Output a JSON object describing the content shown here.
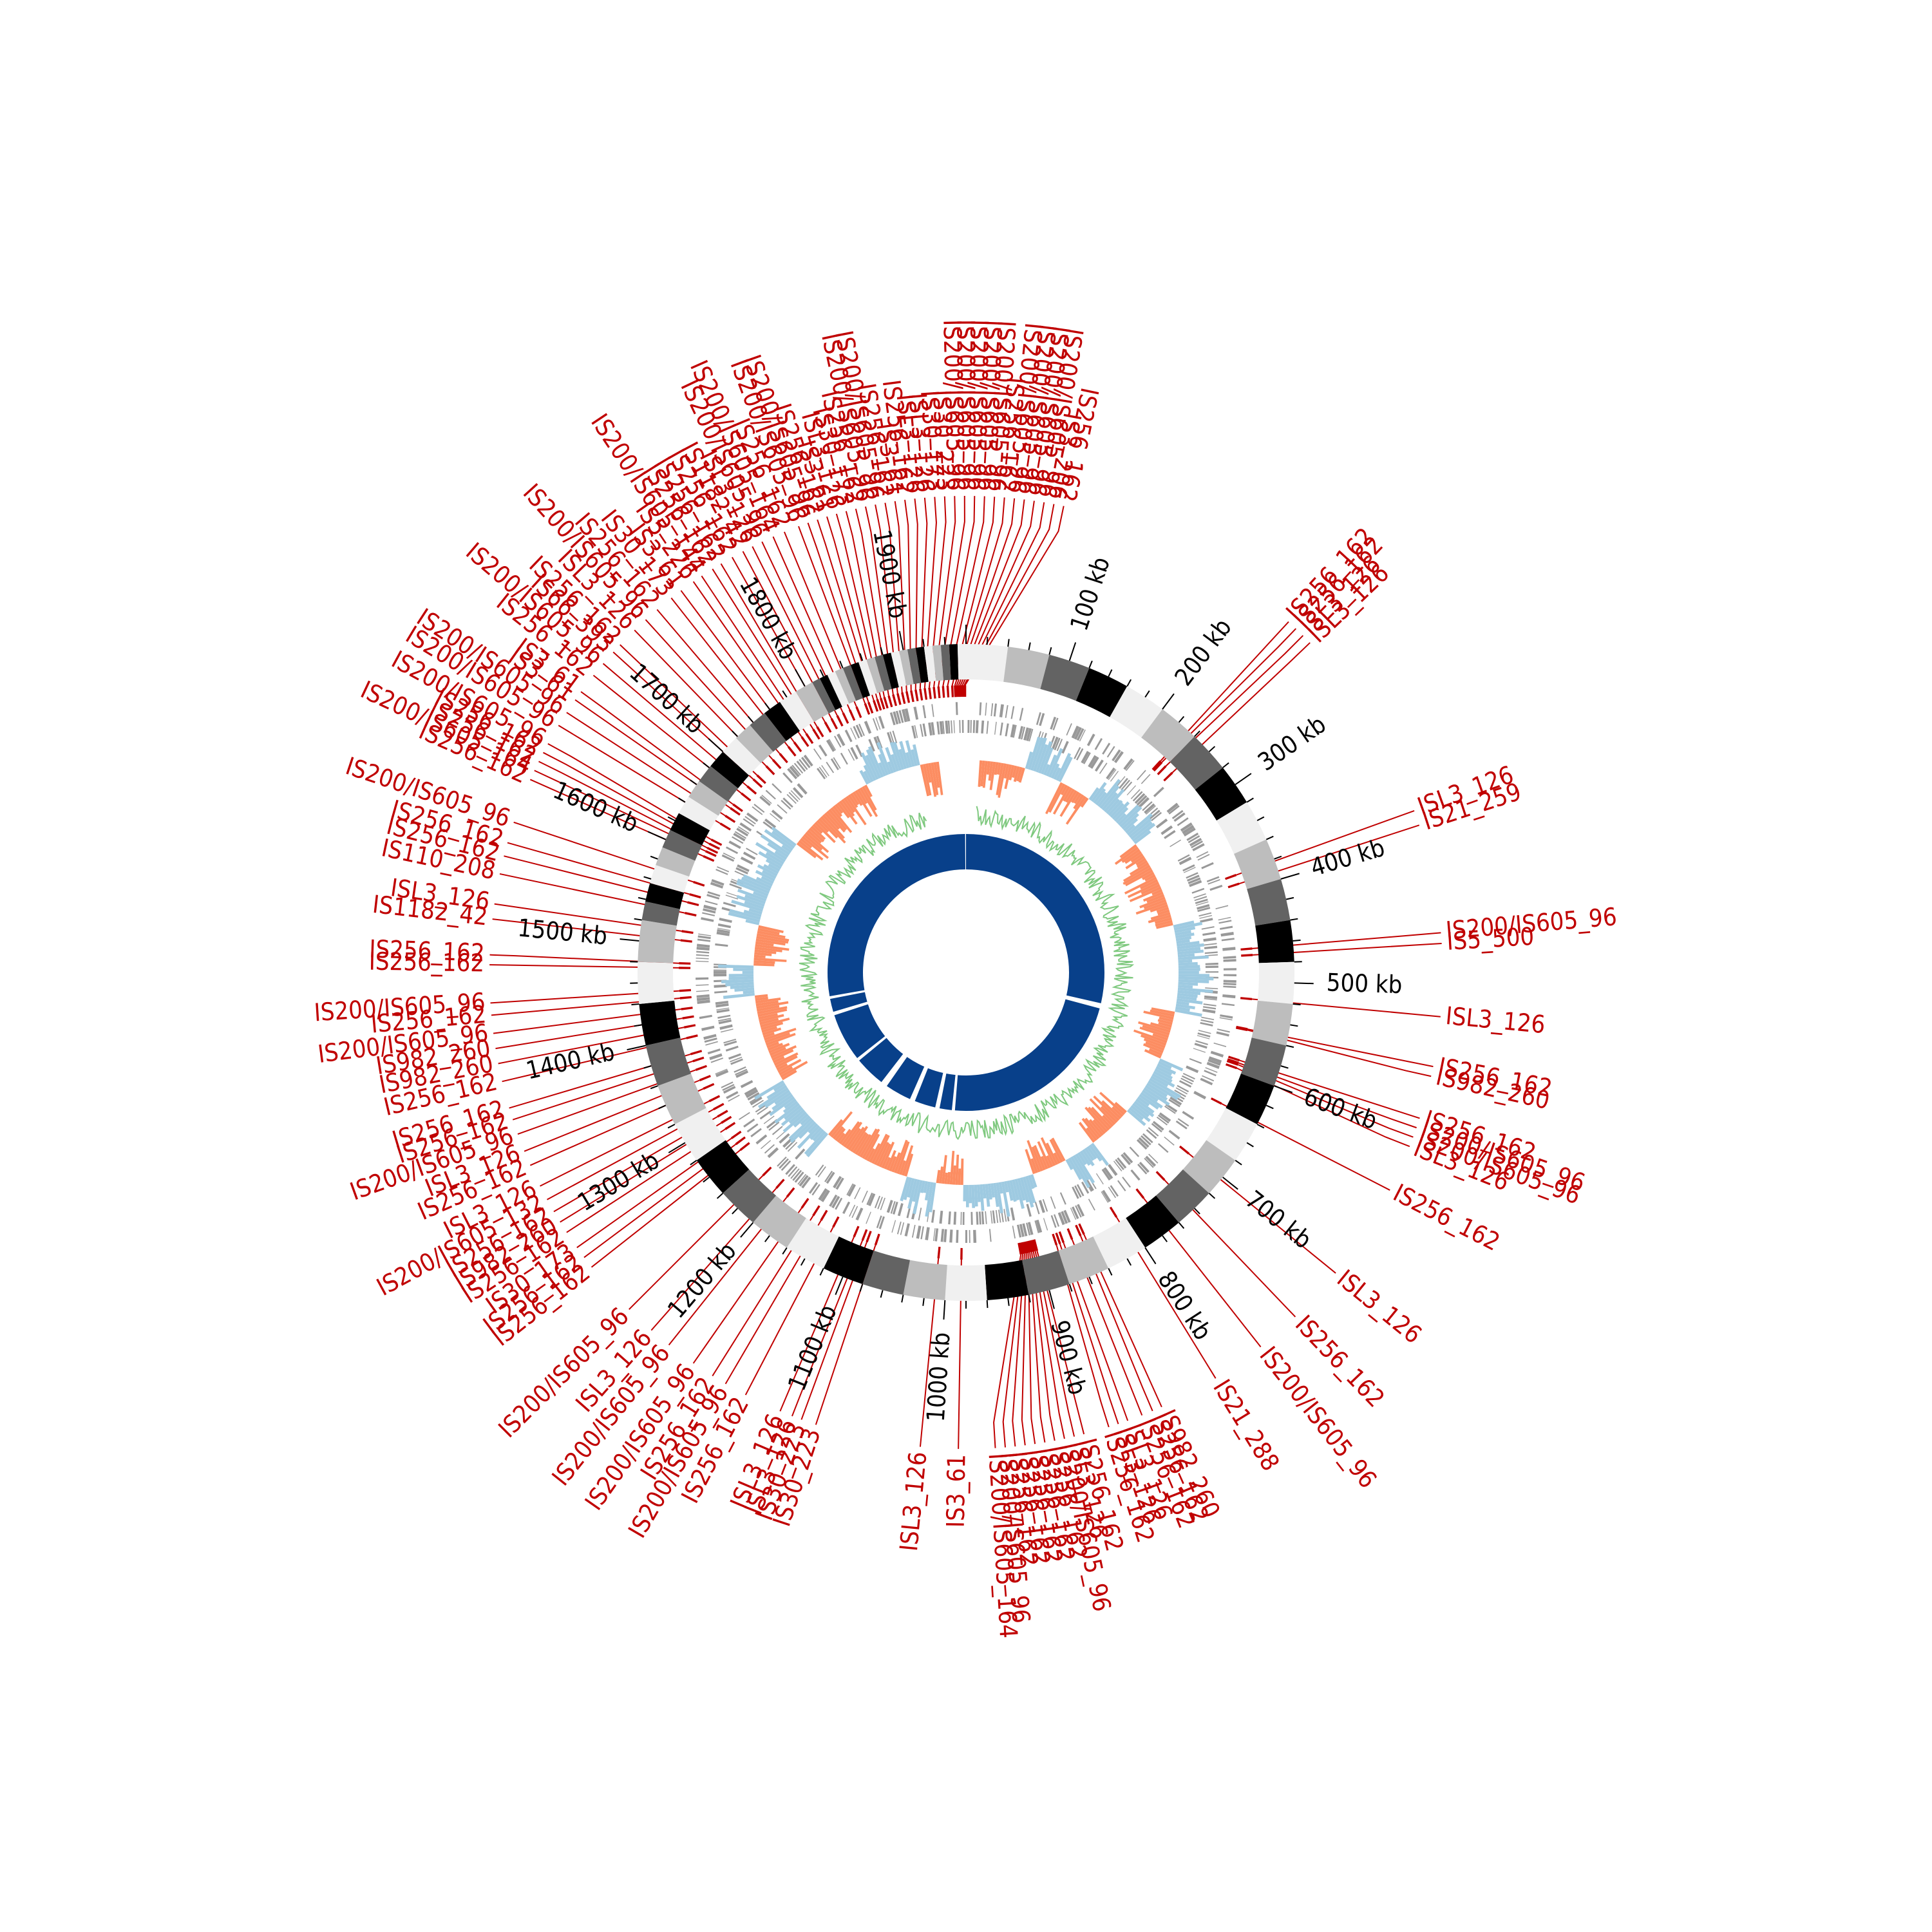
{
  "colors": {
    "is_red": "#c00000",
    "gc_content": "#7fc97f",
    "skew_positive": "#9ecae1",
    "skew_negative": "#fc8d62",
    "genes": "#999999",
    "blast_blue": "#08408a",
    "band_shades": [
      "#f0f0f0",
      "#bdbdbd",
      "#636363",
      "#000000"
    ]
  },
  "genome": {
    "length_kb": 1960,
    "tick_labels": [
      {
        "kb": 100,
        "text": "100 kb"
      },
      {
        "kb": 200,
        "text": "200 kb"
      },
      {
        "kb": 300,
        "text": "300 kb"
      },
      {
        "kb": 400,
        "text": "400 kb"
      },
      {
        "kb": 500,
        "text": "500 kb"
      },
      {
        "kb": 600,
        "text": "600 kb"
      },
      {
        "kb": 700,
        "text": "700 kb"
      },
      {
        "kb": 800,
        "text": "800 kb"
      },
      {
        "kb": 900,
        "text": "900 kb"
      },
      {
        "kb": 1000,
        "text": "1000 kb"
      },
      {
        "kb": 1100,
        "text": "1100 kb"
      },
      {
        "kb": 1200,
        "text": "1200 kb"
      },
      {
        "kb": 1300,
        "text": "1300 kb"
      },
      {
        "kb": 1400,
        "text": "1400 kb"
      },
      {
        "kb": 1500,
        "text": "1500 kb"
      },
      {
        "kb": 1600,
        "text": "1600 kb"
      },
      {
        "kb": 1700,
        "text": "1700 kb"
      },
      {
        "kb": 1800,
        "text": "1800 kb"
      },
      {
        "kb": 1900,
        "text": "1900 kb"
      }
    ]
  },
  "is_elements": [
    {
      "kb": 232,
      "label": "IS256_162"
    },
    {
      "kb": 234,
      "label": "IS256_162"
    },
    {
      "kb": 240,
      "label": "ISL3_126"
    },
    {
      "kb": 250,
      "label": "ISL3_126"
    },
    {
      "kb": 382,
      "label": "ISL3_126"
    },
    {
      "kb": 392,
      "label": "IS21_259"
    },
    {
      "kb": 464,
      "label": "IS200/IS605_96"
    },
    {
      "kb": 471,
      "label": "IS5_500"
    },
    {
      "kb": 519,
      "label": "ISL3_126"
    },
    {
      "kb": 552,
      "label": "IS256_162"
    },
    {
      "kb": 553,
      "label": "IS982_260"
    },
    {
      "kb": 587,
      "label": "IS256_162"
    },
    {
      "kb": 590,
      "label": "IS200/IS605_96"
    },
    {
      "kb": 592,
      "label": "IS200/IS605_96"
    },
    {
      "kb": 596,
      "label": "ISL3_126"
    },
    {
      "kb": 638,
      "label": "IS256_162"
    },
    {
      "kb": 703,
      "label": "ISL3_126"
    },
    {
      "kb": 742,
      "label": "IS256_162"
    },
    {
      "kb": 772,
      "label": "IS200/IS605_96"
    },
    {
      "kb": 808,
      "label": "IS21_288"
    },
    {
      "kb": 848,
      "label": "IS982_260"
    },
    {
      "kb": 852,
      "label": "IS256_162"
    },
    {
      "kb": 862,
      "label": "IS256_162"
    },
    {
      "kb": 872,
      "label": "ISL3_126"
    },
    {
      "kb": 876,
      "label": "ISL3_126"
    },
    {
      "kb": 880,
      "label": "IS256_162"
    },
    {
      "kb": 902,
      "label": "IS256_162"
    },
    {
      "kb": 904,
      "label": "ISL3_126"
    },
    {
      "kb": 906,
      "label": "IS200/IS605_96"
    },
    {
      "kb": 908,
      "label": "IS256_162"
    },
    {
      "kb": 910,
      "label": "IS256_162"
    },
    {
      "kb": 912,
      "label": "IS256_162"
    },
    {
      "kb": 914,
      "label": "IS256_162"
    },
    {
      "kb": 916,
      "label": "IS256_162"
    },
    {
      "kb": 918,
      "label": "IS200/IS605_96"
    },
    {
      "kb": 920,
      "label": "IS200/IS605_164"
    },
    {
      "kb": 985,
      "label": "IS3_61"
    },
    {
      "kb": 1010,
      "label": "ISL3_126"
    },
    {
      "kb": 1080,
      "label": "IS30_223"
    },
    {
      "kb": 1090,
      "label": "IS30_223"
    },
    {
      "kb": 1095,
      "label": "ISL3_126"
    },
    {
      "kb": 1105,
      "label": "ISL3_126"
    },
    {
      "kb": 1130,
      "label": "IS256_162"
    },
    {
      "kb": 1145,
      "label": "IS200/IS605_96"
    },
    {
      "kb": 1155,
      "label": "IS256_162"
    },
    {
      "kb": 1170,
      "label": "IS200/IS605_96"
    },
    {
      "kb": 1190,
      "label": "IS200/IS605_96"
    },
    {
      "kb": 1205,
      "label": "ISL3_126"
    },
    {
      "kb": 1225,
      "label": "IS200/IS605_96"
    },
    {
      "kb": 1262,
      "label": "IS256_162"
    },
    {
      "kb": 1270,
      "label": "IS256_162"
    },
    {
      "kb": 1278,
      "label": "IS30_173"
    },
    {
      "kb": 1290,
      "label": "IS256_162"
    },
    {
      "kb": 1298,
      "label": "IS982_260"
    },
    {
      "kb": 1306,
      "label": "IS256_162"
    },
    {
      "kb": 1315,
      "label": "IS200/IS605_132"
    },
    {
      "kb": 1325,
      "label": "ISL3_126"
    },
    {
      "kb": 1340,
      "label": "IS256_162"
    },
    {
      "kb": 1350,
      "label": "ISL3_126"
    },
    {
      "kb": 1362,
      "label": "IS200/IS605_96"
    },
    {
      "kb": 1372,
      "label": "IS256_162"
    },
    {
      "kb": 1380,
      "label": "IS256_162"
    },
    {
      "kb": 1398,
      "label": "IS256_162"
    },
    {
      "kb": 1410,
      "label": "IS982_260"
    },
    {
      "kb": 1420,
      "label": "IS982_260"
    },
    {
      "kb": 1430,
      "label": "IS200/IS605_96"
    },
    {
      "kb": 1442,
      "label": "IS256_162"
    },
    {
      "kb": 1450,
      "label": "IS200/IS605_96"
    },
    {
      "kb": 1475,
      "label": "IS256_162"
    },
    {
      "kb": 1480,
      "label": "IS256_162"
    },
    {
      "kb": 1505,
      "label": "IS1182_42"
    },
    {
      "kb": 1515,
      "label": "ISL3_126"
    },
    {
      "kb": 1535,
      "label": "IS110_208"
    },
    {
      "kb": 1547,
      "label": "IS256_162"
    },
    {
      "kb": 1556,
      "label": "IS256_162"
    },
    {
      "kb": 1570,
      "label": "IS200/IS605_96"
    },
    {
      "kb": 1600,
      "label": "IS256_162"
    },
    {
      "kb": 1606,
      "label": "IS200/IS605_164"
    },
    {
      "kb": 1610,
      "label": "IS256_162"
    },
    {
      "kb": 1615,
      "label": "IS256_162"
    },
    {
      "kb": 1620,
      "label": "IS200/IS605_96"
    },
    {
      "kb": 1640,
      "label": "IS200/IS605_96"
    },
    {
      "kb": 1650,
      "label": "IS200/IS605_96"
    },
    {
      "kb": 1660,
      "label": "IS3_61"
    },
    {
      "kb": 1665,
      "label": "IS3_61"
    },
    {
      "kb": 1680,
      "label": "IS256_162"
    },
    {
      "kb": 1690,
      "label": "IS200/IS605_96"
    },
    {
      "kb": 1700,
      "label": "IS66_393"
    },
    {
      "kb": 1706,
      "label": "IS256_162"
    },
    {
      "kb": 1720,
      "label": "ISL3_126"
    },
    {
      "kb": 1730,
      "label": "IS200/IS605_96"
    },
    {
      "kb": 1740,
      "label": "IS256_162"
    },
    {
      "kb": 1752,
      "label": "IS30_173"
    },
    {
      "kb": 1760,
      "label": "IS3_61"
    },
    {
      "kb": 1770,
      "label": "IS5_226"
    },
    {
      "kb": 1776,
      "label": "IS200/IS605_144"
    },
    {
      "kb": 1785,
      "label": "IS256_162"
    },
    {
      "kb": 1790,
      "label": "IS256_162"
    },
    {
      "kb": 1800,
      "label": "IS256_162"
    },
    {
      "kb": 1808,
      "label": "IS1182_42"
    },
    {
      "kb": 1815,
      "label": "ISL3_126"
    },
    {
      "kb": 1822,
      "label": "IS200/IS605_96"
    },
    {
      "kb": 1830,
      "label": "IS200/IS605_164"
    },
    {
      "kb": 1838,
      "label": "IS256_162"
    },
    {
      "kb": 1848,
      "label": "IS200/IS605_96"
    },
    {
      "kb": 1852,
      "label": "IS200/IS605_96"
    },
    {
      "kb": 1858,
      "label": "IS256_162"
    },
    {
      "kb": 1862,
      "label": "IS3_61"
    },
    {
      "kb": 1866,
      "label": "ISL3_126"
    },
    {
      "kb": 1870,
      "label": "IS30_173"
    },
    {
      "kb": 1875,
      "label": "IS256_162"
    },
    {
      "kb": 1880,
      "label": "IS200/IS605_96"
    },
    {
      "kb": 1885,
      "label": "IS200/IS605_96"
    },
    {
      "kb": 1890,
      "label": "IS256_162"
    },
    {
      "kb": 1895,
      "label": "IS3_61"
    },
    {
      "kb": 1900,
      "label": "IS256_162"
    },
    {
      "kb": 1905,
      "label": "ISL3_126"
    },
    {
      "kb": 1910,
      "label": "ISL3_126"
    },
    {
      "kb": 1915,
      "label": "IS30_173"
    },
    {
      "kb": 1920,
      "label": "IS30_223"
    },
    {
      "kb": 1925,
      "label": "IS200/IS605_96"
    },
    {
      "kb": 1930,
      "label": "IS200/IS605_96"
    },
    {
      "kb": 1935,
      "label": "IS200/IS605_96"
    },
    {
      "kb": 1940,
      "label": "IS200/IS605_96"
    },
    {
      "kb": 1945,
      "label": "IS200/IS605_96"
    },
    {
      "kb": 1948,
      "label": "IS256_162"
    },
    {
      "kb": 1950,
      "label": "IS200/IS605_96"
    },
    {
      "kb": 1952,
      "label": "IS200/IS605_96"
    },
    {
      "kb": 1954,
      "label": "IS200/IS605_96"
    },
    {
      "kb": 1956,
      "label": "IS200/IS605_96"
    },
    {
      "kb": 1958,
      "label": "IS3_206"
    },
    {
      "kb": 1959,
      "label": "IS256_162"
    }
  ]
}
